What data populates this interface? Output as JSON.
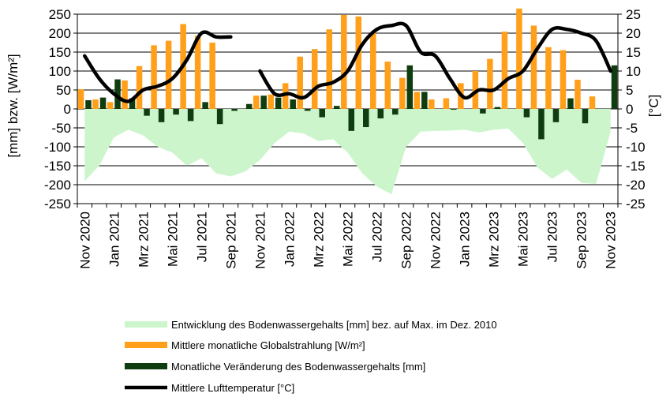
{
  "chart_data": {
    "type": "bar",
    "categories": [
      "Nov 2020",
      "Dez 2020",
      "Jan 2021",
      "Feb 2021",
      "Mrz 2021",
      "Apr 2021",
      "Mai 2021",
      "Jun 2021",
      "Jul 2021",
      "Aug 2021",
      "Sep 2021",
      "Okt 2021",
      "Nov 2021",
      "Dez 2021",
      "Jan 2022",
      "Feb 2022",
      "Mrz 2022",
      "Apr 2022",
      "Mai 2022",
      "Jun 2022",
      "Jul 2022",
      "Aug 2022",
      "Sep 2022",
      "Okt 2022",
      "Nov 2022",
      "Dez 2022",
      "Jan 2023",
      "Feb 2023",
      "Mrz 2023",
      "Apr 2023",
      "Mai 2023",
      "Jun 2023",
      "Jul 2023",
      "Aug 2023",
      "Sep 2023",
      "Okt 2023",
      "Nov 2023"
    ],
    "x_tick_labels": [
      "Nov 2020",
      "Jan 2021",
      "Mrz 2021",
      "Mai 2021",
      "Jul 2021",
      "Sep 2021",
      "Nov 2021",
      "Jan 2022",
      "Mrz 2022",
      "Mai 2022",
      "Jul 2022",
      "Sep 2022",
      "Nov 2022",
      "Jan 2023",
      "Mrz 2023",
      "Mai 2023",
      "Jul 2023",
      "Sep 2023",
      "Nov 2023"
    ],
    "ylabel_left": "[mm] bzw. [W/m²]",
    "ylabel_right": "[°C]",
    "ylim_left": [
      -250,
      250
    ],
    "ylim_right": [
      -25,
      25
    ],
    "yticks_left": [
      "250",
      "200",
      "150",
      "100",
      "50",
      "0",
      "-50",
      "-100",
      "-150",
      "-200",
      "-250"
    ],
    "yticks_right": [
      "25",
      "20",
      "15",
      "10",
      "5",
      "0",
      "-5",
      "-10",
      "-15",
      "-20",
      "-25"
    ],
    "grid": "horizontal",
    "legend_position": "bottom",
    "series": [
      {
        "name": "Entwicklung des Bodenwassergehalts [mm] bez. auf Max. im Dez. 2010",
        "type": "area",
        "axis": "left",
        "color": "#ccf5cc",
        "values": [
          -190,
          -150,
          -75,
          -55,
          -70,
          -100,
          -115,
          -150,
          -130,
          -170,
          -178,
          -165,
          -135,
          -90,
          -60,
          -65,
          -85,
          -80,
          -115,
          -170,
          -205,
          -225,
          -100,
          -60,
          -58,
          -57,
          -55,
          -62,
          -55,
          -52,
          -90,
          -155,
          -185,
          -160,
          -195,
          -198,
          -60
        ]
      },
      {
        "name": "Mittlere monatliche Globalstrahlung [W/m²]",
        "type": "bar",
        "axis": "left",
        "color": "#ff9f1a",
        "values": [
          52,
          25,
          18,
          75,
          113,
          168,
          180,
          224,
          193,
          175,
          null,
          null,
          35,
          38,
          68,
          138,
          158,
          210,
          248,
          244,
          201,
          125,
          82,
          45,
          25,
          28,
          68,
          100,
          132,
          204,
          265,
          220,
          163,
          155,
          77,
          33,
          null
        ]
      },
      {
        "name": "Monatliche Veränderung des Bodenwassergehalts [mm]",
        "type": "bar",
        "axis": "left",
        "color": "#0f3d0f",
        "values": [
          23,
          30,
          78,
          28,
          -18,
          -35,
          -15,
          -32,
          18,
          -40,
          -5,
          13,
          35,
          30,
          25,
          -5,
          -22,
          8,
          -58,
          -48,
          -25,
          -15,
          115,
          45,
          0,
          -2,
          0,
          -12,
          5,
          0,
          -22,
          -80,
          -35,
          28,
          -38,
          0,
          115
        ]
      },
      {
        "name": "Mittlere Lufttemperatur [°C]",
        "type": "line",
        "axis": "right",
        "color": "#000000",
        "values": [
          14,
          8,
          4,
          2,
          5,
          6,
          8,
          13,
          20,
          19,
          19,
          null,
          10,
          4,
          4,
          3,
          6,
          7,
          10,
          17,
          21,
          22,
          22,
          15,
          14,
          8,
          3,
          5,
          5,
          8,
          10,
          16,
          21,
          21,
          20,
          18,
          10
        ]
      }
    ]
  }
}
